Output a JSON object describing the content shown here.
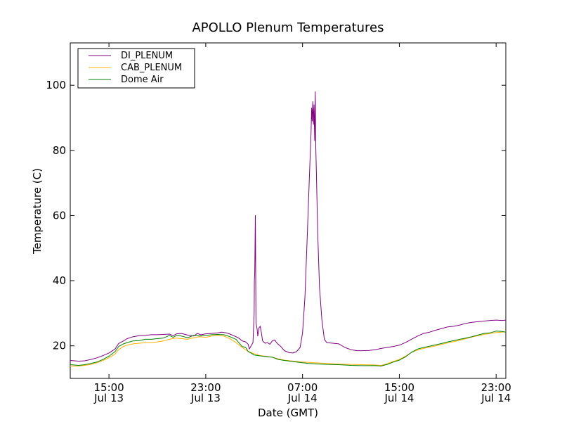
{
  "chart_data": {
    "type": "line",
    "title": "APOLLO Plenum Temperatures",
    "xlabel": "Date (GMT)",
    "ylabel": "Temperature (C)",
    "x_unit": "hours since Jul 13 00:00 GMT",
    "xlim": [
      11.8,
      47.8
    ],
    "ylim": [
      10,
      113
    ],
    "grid": false,
    "legend_position": "top-left",
    "x_ticks": [
      {
        "value": 15,
        "label_time": "15:00",
        "label_date": "Jul 13"
      },
      {
        "value": 23,
        "label_time": "23:00",
        "label_date": "Jul 13"
      },
      {
        "value": 31,
        "label_time": "07:00",
        "label_date": "Jul 14"
      },
      {
        "value": 39,
        "label_time": "15:00",
        "label_date": "Jul 14"
      },
      {
        "value": 47,
        "label_time": "23:00",
        "label_date": "Jul 14"
      }
    ],
    "y_ticks": [
      {
        "value": 20,
        "label": "20"
      },
      {
        "value": 40,
        "label": "40"
      },
      {
        "value": 60,
        "label": "60"
      },
      {
        "value": 80,
        "label": "80"
      },
      {
        "value": 100,
        "label": "100"
      }
    ],
    "series": [
      {
        "name": "DI_PLENUM",
        "color": "#800080",
        "points": [
          [
            11.8,
            15.5
          ],
          [
            12.5,
            15.3
          ],
          [
            13.0,
            15.4
          ],
          [
            13.5,
            15.8
          ],
          [
            14.0,
            16.3
          ],
          [
            14.5,
            17.0
          ],
          [
            15.0,
            17.8
          ],
          [
            15.5,
            19.0
          ],
          [
            15.8,
            20.7
          ],
          [
            16.2,
            21.5
          ],
          [
            16.5,
            22.2
          ],
          [
            17.0,
            22.8
          ],
          [
            17.5,
            23.1
          ],
          [
            18.0,
            23.2
          ],
          [
            18.5,
            23.4
          ],
          [
            19.0,
            23.4
          ],
          [
            19.5,
            23.5
          ],
          [
            20.0,
            23.6
          ],
          [
            20.3,
            23.1
          ],
          [
            20.6,
            23.7
          ],
          [
            21.0,
            23.8
          ],
          [
            21.5,
            23.3
          ],
          [
            22.0,
            23.0
          ],
          [
            22.3,
            23.8
          ],
          [
            22.6,
            23.4
          ],
          [
            23.0,
            23.7
          ],
          [
            23.5,
            23.8
          ],
          [
            24.0,
            24.0
          ],
          [
            24.3,
            24.2
          ],
          [
            24.7,
            24.0
          ],
          [
            25.0,
            23.6
          ],
          [
            25.5,
            22.8
          ],
          [
            25.8,
            22.2
          ],
          [
            26.0,
            21.5
          ],
          [
            26.3,
            21.2
          ],
          [
            26.5,
            20.5
          ],
          [
            26.6,
            19.0
          ],
          [
            26.9,
            21.0
          ],
          [
            27.0,
            30.0
          ],
          [
            27.02,
            40.0
          ],
          [
            27.05,
            42.0
          ],
          [
            27.1,
            60.0
          ],
          [
            27.15,
            27.0
          ],
          [
            27.25,
            25.0
          ],
          [
            27.3,
            23.0
          ],
          [
            27.4,
            25.5
          ],
          [
            27.5,
            26.0
          ],
          [
            27.6,
            24.0
          ],
          [
            27.7,
            21.5
          ],
          [
            27.9,
            20.8
          ],
          [
            28.1,
            21.0
          ],
          [
            28.3,
            20.5
          ],
          [
            28.5,
            21.5
          ],
          [
            28.7,
            21.8
          ],
          [
            28.9,
            20.8
          ],
          [
            29.2,
            19.8
          ],
          [
            29.5,
            18.5
          ],
          [
            29.9,
            17.9
          ],
          [
            30.2,
            17.8
          ],
          [
            30.5,
            18.2
          ],
          [
            30.8,
            19.5
          ],
          [
            31.0,
            24.0
          ],
          [
            31.2,
            35.0
          ],
          [
            31.4,
            55.0
          ],
          [
            31.55,
            70.0
          ],
          [
            31.7,
            85.0
          ],
          [
            31.75,
            93.0
          ],
          [
            31.8,
            89.0
          ],
          [
            31.85,
            95.0
          ],
          [
            31.9,
            88.0
          ],
          [
            31.95,
            94.0
          ],
          [
            32.0,
            83.0
          ],
          [
            32.05,
            98.0
          ],
          [
            32.1,
            80.0
          ],
          [
            32.15,
            72.0
          ],
          [
            32.25,
            55.0
          ],
          [
            32.4,
            38.0
          ],
          [
            32.6,
            28.0
          ],
          [
            32.8,
            22.0
          ],
          [
            33.0,
            21.0
          ],
          [
            33.5,
            20.8
          ],
          [
            34.0,
            20.6
          ],
          [
            34.5,
            19.5
          ],
          [
            35.0,
            18.8
          ],
          [
            35.5,
            18.5
          ],
          [
            36.0,
            18.5
          ],
          [
            36.5,
            18.6
          ],
          [
            37.0,
            18.8
          ],
          [
            37.5,
            19.2
          ],
          [
            38.0,
            19.5
          ],
          [
            38.5,
            19.8
          ],
          [
            39.0,
            20.2
          ],
          [
            39.5,
            21.0
          ],
          [
            40.0,
            22.0
          ],
          [
            40.5,
            23.0
          ],
          [
            41.0,
            23.8
          ],
          [
            41.5,
            24.2
          ],
          [
            42.0,
            24.8
          ],
          [
            42.5,
            25.3
          ],
          [
            43.0,
            25.8
          ],
          [
            43.5,
            26.0
          ],
          [
            44.0,
            26.4
          ],
          [
            44.5,
            26.9
          ],
          [
            45.0,
            27.2
          ],
          [
            45.5,
            27.4
          ],
          [
            46.0,
            27.6
          ],
          [
            46.5,
            27.8
          ],
          [
            47.0,
            27.9
          ],
          [
            47.5,
            27.8
          ],
          [
            47.8,
            27.9
          ]
        ]
      },
      {
        "name": "CAB_PLENUM",
        "color": "#ffb000",
        "points": [
          [
            11.8,
            13.8
          ],
          [
            12.5,
            13.8
          ],
          [
            13.0,
            14.0
          ],
          [
            13.5,
            14.3
          ],
          [
            14.0,
            14.8
          ],
          [
            14.5,
            15.5
          ],
          [
            15.0,
            16.3
          ],
          [
            15.5,
            17.5
          ],
          [
            15.8,
            18.8
          ],
          [
            16.2,
            19.8
          ],
          [
            16.5,
            20.2
          ],
          [
            17.0,
            20.6
          ],
          [
            17.5,
            20.8
          ],
          [
            18.0,
            21.0
          ],
          [
            18.5,
            21.0
          ],
          [
            19.0,
            21.2
          ],
          [
            19.5,
            21.5
          ],
          [
            20.0,
            22.0
          ],
          [
            20.5,
            22.4
          ],
          [
            21.0,
            22.2
          ],
          [
            21.5,
            22.0
          ],
          [
            22.0,
            22.5
          ],
          [
            22.5,
            22.8
          ],
          [
            23.0,
            22.6
          ],
          [
            23.5,
            23.0
          ],
          [
            24.0,
            23.2
          ],
          [
            24.5,
            23.0
          ],
          [
            25.0,
            22.2
          ],
          [
            25.5,
            21.0
          ],
          [
            26.0,
            19.5
          ],
          [
            26.5,
            18.3
          ],
          [
            27.0,
            17.6
          ],
          [
            27.5,
            17.0
          ],
          [
            28.0,
            16.8
          ],
          [
            28.5,
            16.5
          ],
          [
            29.0,
            16.0
          ],
          [
            29.5,
            15.6
          ],
          [
            30.0,
            15.4
          ],
          [
            30.5,
            15.2
          ],
          [
            31.0,
            15.0
          ],
          [
            31.5,
            14.9
          ],
          [
            32.0,
            14.8
          ],
          [
            33.0,
            14.6
          ],
          [
            34.0,
            14.4
          ],
          [
            35.0,
            14.3
          ],
          [
            36.0,
            14.2
          ],
          [
            37.0,
            14.1
          ],
          [
            37.5,
            14.0
          ],
          [
            38.0,
            14.5
          ],
          [
            38.5,
            15.2
          ],
          [
            39.0,
            15.8
          ],
          [
            39.5,
            16.8
          ],
          [
            40.0,
            18.0
          ],
          [
            40.5,
            18.7
          ],
          [
            41.0,
            19.2
          ],
          [
            41.5,
            19.6
          ],
          [
            42.0,
            20.0
          ],
          [
            42.5,
            20.4
          ],
          [
            43.0,
            20.9
          ],
          [
            43.5,
            21.3
          ],
          [
            44.0,
            21.7
          ],
          [
            44.5,
            22.2
          ],
          [
            45.0,
            22.7
          ],
          [
            45.5,
            23.1
          ],
          [
            46.0,
            23.5
          ],
          [
            46.5,
            23.8
          ],
          [
            47.0,
            24.1
          ],
          [
            47.5,
            24.2
          ],
          [
            47.8,
            24.3
          ]
        ]
      },
      {
        "name": "Dome Air",
        "color": "#008000",
        "points": [
          [
            11.8,
            14.2
          ],
          [
            12.5,
            14.0
          ],
          [
            13.0,
            14.2
          ],
          [
            13.5,
            14.6
          ],
          [
            14.0,
            15.0
          ],
          [
            14.5,
            15.8
          ],
          [
            15.0,
            16.8
          ],
          [
            15.5,
            18.2
          ],
          [
            15.8,
            19.8
          ],
          [
            16.2,
            20.6
          ],
          [
            16.5,
            21.0
          ],
          [
            17.0,
            21.5
          ],
          [
            17.5,
            21.6
          ],
          [
            18.0,
            22.0
          ],
          [
            18.5,
            22.0
          ],
          [
            19.0,
            22.2
          ],
          [
            19.5,
            22.4
          ],
          [
            20.0,
            23.2
          ],
          [
            20.3,
            22.6
          ],
          [
            20.6,
            23.2
          ],
          [
            21.0,
            23.0
          ],
          [
            21.5,
            22.5
          ],
          [
            22.0,
            23.2
          ],
          [
            22.5,
            23.0
          ],
          [
            23.0,
            23.2
          ],
          [
            23.5,
            23.4
          ],
          [
            24.0,
            23.5
          ],
          [
            24.5,
            23.4
          ],
          [
            25.0,
            22.8
          ],
          [
            25.5,
            22.0
          ],
          [
            26.0,
            19.8
          ],
          [
            26.3,
            19.5
          ],
          [
            26.5,
            18.3
          ],
          [
            27.0,
            17.2
          ],
          [
            27.5,
            16.9
          ],
          [
            28.0,
            16.7
          ],
          [
            28.5,
            16.5
          ],
          [
            29.0,
            15.8
          ],
          [
            29.5,
            15.5
          ],
          [
            30.0,
            15.3
          ],
          [
            30.5,
            15.0
          ],
          [
            31.0,
            14.8
          ],
          [
            31.5,
            14.6
          ],
          [
            32.0,
            14.5
          ],
          [
            33.0,
            14.3
          ],
          [
            34.0,
            14.2
          ],
          [
            35.0,
            14.0
          ],
          [
            36.0,
            13.9
          ],
          [
            37.0,
            13.9
          ],
          [
            37.5,
            13.8
          ],
          [
            38.0,
            14.3
          ],
          [
            38.5,
            15.0
          ],
          [
            39.0,
            15.6
          ],
          [
            39.5,
            16.6
          ],
          [
            40.0,
            18.0
          ],
          [
            40.5,
            19.0
          ],
          [
            41.0,
            19.5
          ],
          [
            41.5,
            19.9
          ],
          [
            42.0,
            20.3
          ],
          [
            42.5,
            20.7
          ],
          [
            43.0,
            21.2
          ],
          [
            43.5,
            21.6
          ],
          [
            44.0,
            22.0
          ],
          [
            44.5,
            22.4
          ],
          [
            45.0,
            22.8
          ],
          [
            45.5,
            23.3
          ],
          [
            46.0,
            23.8
          ],
          [
            46.5,
            24.0
          ],
          [
            47.0,
            24.5
          ],
          [
            47.5,
            24.4
          ],
          [
            47.8,
            24.2
          ]
        ]
      }
    ]
  }
}
